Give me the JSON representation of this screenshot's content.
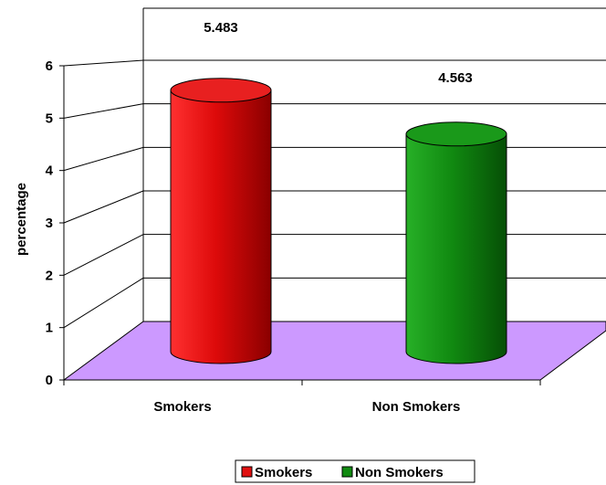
{
  "chart_data": {
    "type": "bar",
    "style": "3d-cylinder",
    "categories": [
      "Smokers",
      "Non Smokers"
    ],
    "values": [
      5.483,
      4.563
    ],
    "data_labels": [
      "5.483",
      "4.563"
    ],
    "colors": [
      "#e01010",
      "#118a11"
    ],
    "floor_color": "#cc99ff",
    "ylabel": "percentage",
    "xlabel": "",
    "ylim": [
      0,
      6
    ],
    "yticks": [
      0,
      1,
      2,
      3,
      4,
      5,
      6
    ],
    "grid": true,
    "legend": {
      "position": "bottom",
      "entries": [
        {
          "name": "Smokers",
          "color": "#e01010"
        },
        {
          "name": "Non Smokers",
          "color": "#118a11"
        }
      ]
    }
  }
}
